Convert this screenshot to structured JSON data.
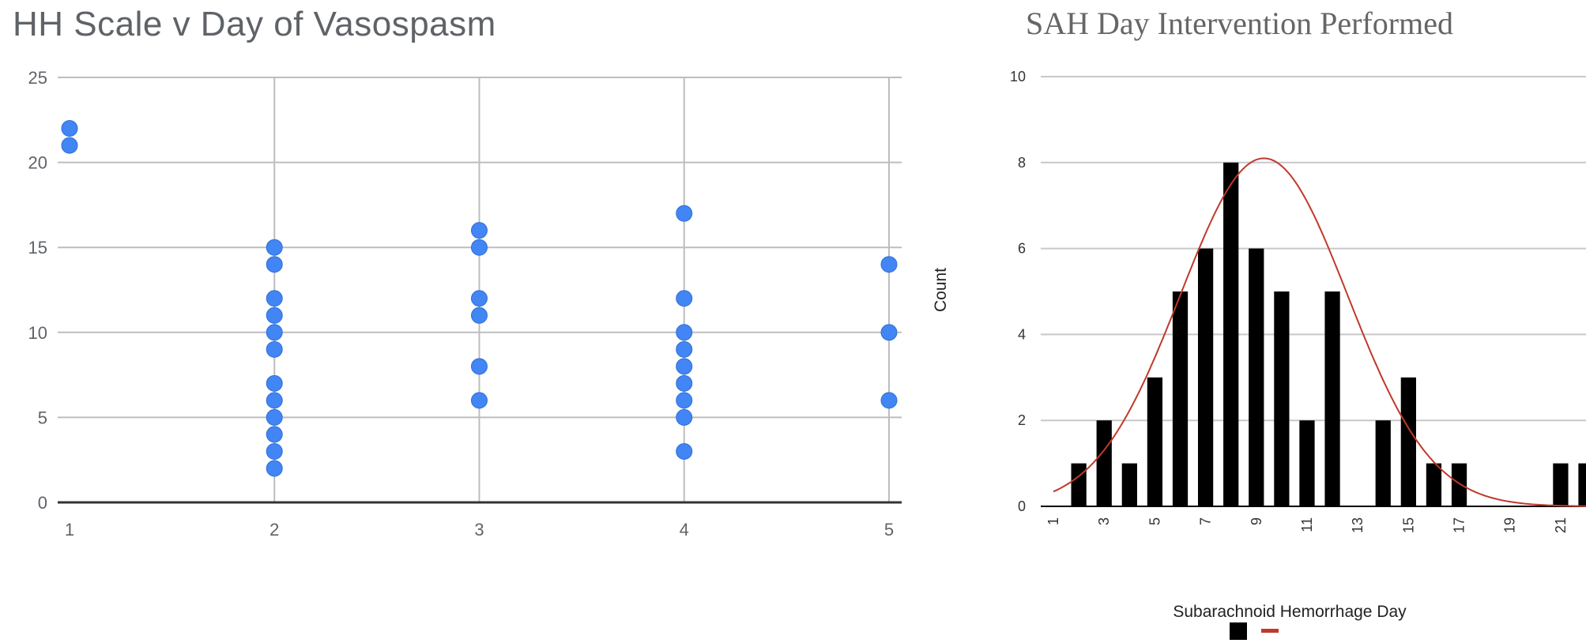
{
  "chart_data": [
    {
      "type": "scatter",
      "title": "HH Scale v Day of Vasospasm",
      "xlabel": "",
      "ylabel": "",
      "xlim": [
        1,
        5
      ],
      "ylim": [
        0,
        25
      ],
      "xticks": [
        1,
        2,
        3,
        4,
        5
      ],
      "yticks": [
        0,
        5,
        10,
        15,
        20,
        25
      ],
      "grid": true,
      "color": "#4285f4",
      "points": [
        [
          1,
          22
        ],
        [
          1,
          21
        ],
        [
          2,
          15
        ],
        [
          2,
          14
        ],
        [
          2,
          12
        ],
        [
          2,
          11
        ],
        [
          2,
          10
        ],
        [
          2,
          9
        ],
        [
          2,
          7
        ],
        [
          2,
          6
        ],
        [
          2,
          5
        ],
        [
          2,
          4
        ],
        [
          2,
          3
        ],
        [
          2,
          2
        ],
        [
          3,
          16
        ],
        [
          3,
          15
        ],
        [
          3,
          12
        ],
        [
          3,
          11
        ],
        [
          3,
          8
        ],
        [
          3,
          6
        ],
        [
          4,
          17
        ],
        [
          4,
          12
        ],
        [
          4,
          10
        ],
        [
          4,
          9
        ],
        [
          4,
          8
        ],
        [
          4,
          7
        ],
        [
          4,
          6
        ],
        [
          4,
          5
        ],
        [
          4,
          3
        ],
        [
          5,
          14
        ],
        [
          5,
          10
        ],
        [
          5,
          6
        ]
      ]
    },
    {
      "type": "bar",
      "title": "SAH Day Intervention Performed",
      "xlabel": "Subarachnoid Hemorrhage Day",
      "ylabel": "Count",
      "ylim": [
        0,
        10
      ],
      "yticks": [
        0,
        2,
        4,
        6,
        8,
        10
      ],
      "grid": true,
      "categories": [
        1,
        2,
        3,
        4,
        5,
        6,
        7,
        8,
        9,
        10,
        11,
        12,
        13,
        14,
        15,
        16,
        17,
        18,
        19,
        20,
        21,
        22
      ],
      "tick_labels": [
        "1",
        "3",
        "5",
        "7",
        "9",
        "11",
        "13",
        "15",
        "17",
        "19",
        "21"
      ],
      "values": [
        0,
        1,
        2,
        1,
        3,
        5,
        6,
        8,
        6,
        5,
        2,
        5,
        0,
        2,
        3,
        1,
        1,
        0,
        0,
        0,
        1,
        1
      ],
      "bar_color": "#000000",
      "curve_color": "#c0392b",
      "normal_fit": {
        "mean": 9.3,
        "peak": 8.1
      },
      "legend": {
        "placement": "bottom",
        "entries": [
          "",
          ""
        ]
      }
    }
  ]
}
